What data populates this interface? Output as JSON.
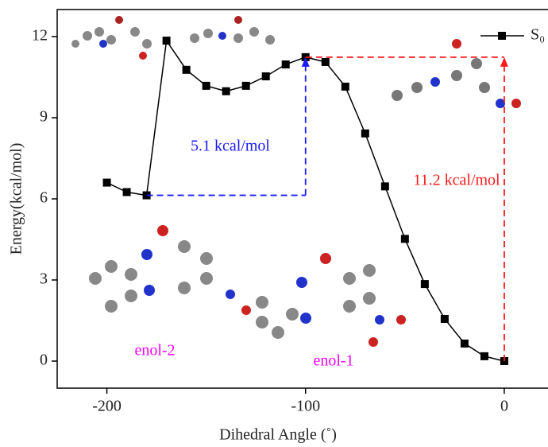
{
  "chart_data": {
    "type": "line",
    "x_label": "Dihedral Angle (˚)",
    "y_label": "Energy(kcal/mol)",
    "xlim": [
      -225,
      22
    ],
    "ylim": [
      -1,
      13
    ],
    "xticks": [
      -200,
      -100,
      0
    ],
    "yticks": [
      0,
      3,
      6,
      9,
      12
    ],
    "series": [
      {
        "name": "S₀",
        "color": "#000000",
        "x": [
          -200,
          -190,
          -180,
          -170,
          -160,
          -150,
          -140,
          -130,
          -120,
          -110,
          -100,
          -90,
          -80,
          -70,
          -60,
          -50,
          -40,
          -30,
          -20,
          -10,
          0
        ],
        "values": [
          6.6,
          6.25,
          6.13,
          11.85,
          10.77,
          10.18,
          9.98,
          10.18,
          10.53,
          10.97,
          11.24,
          11.06,
          10.15,
          8.42,
          6.46,
          4.52,
          2.85,
          1.56,
          0.65,
          0.18,
          0
        ]
      }
    ],
    "annotations": [
      "5.1 kcal/mol",
      "11.2 kcal/mol",
      "enol-2",
      "enol-1"
    ],
    "annotation_colors": [
      "#1a1aff",
      "#ff1a1a",
      "#ff00ff",
      "#ff00ff"
    ]
  }
}
